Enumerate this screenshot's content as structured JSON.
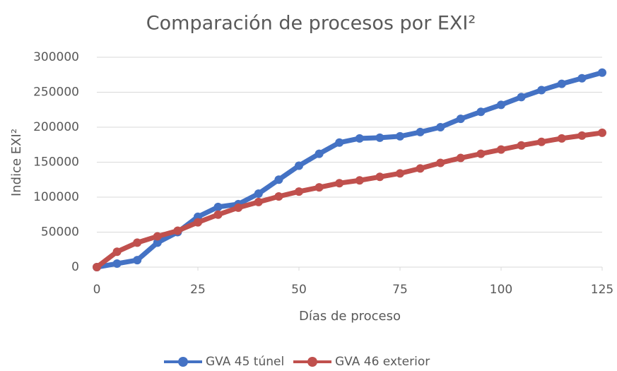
{
  "chart_data": {
    "type": "line",
    "title": "Comparación de procesos por EXI²",
    "x_label": "Días de proceso",
    "y_label": "Indice EXI²",
    "x": [
      0,
      5,
      10,
      15,
      20,
      25,
      30,
      35,
      40,
      45,
      50,
      55,
      60,
      65,
      70,
      75,
      80,
      85,
      90,
      95,
      100,
      105,
      110,
      115,
      120,
      125
    ],
    "series": [
      {
        "name": "GVA 45 túnel",
        "color": "#4472c4",
        "values": [
          0,
          5000,
          10000,
          35000,
          50000,
          72000,
          86000,
          90000,
          105000,
          125000,
          145000,
          162000,
          178000,
          184000,
          185000,
          187000,
          193000,
          200000,
          212000,
          222000,
          232000,
          243000,
          253000,
          262000,
          270000,
          278000
        ]
      },
      {
        "name": "GVA 46 exterior",
        "color": "#c0504d",
        "values": [
          0,
          22000,
          35000,
          44000,
          52000,
          64000,
          75000,
          85000,
          93000,
          101000,
          108000,
          114000,
          120000,
          124000,
          129000,
          134000,
          141000,
          149000,
          156000,
          162000,
          168000,
          174000,
          179000,
          184000,
          188000,
          192000
        ]
      }
    ],
    "xlim": [
      0,
      125
    ],
    "xticks": [
      0,
      25,
      50,
      75,
      100,
      125
    ],
    "ylim": [
      0,
      300000
    ],
    "yticks": [
      0,
      50000,
      100000,
      150000,
      200000,
      250000,
      300000
    ],
    "grid": true,
    "legend": "bottom"
  }
}
